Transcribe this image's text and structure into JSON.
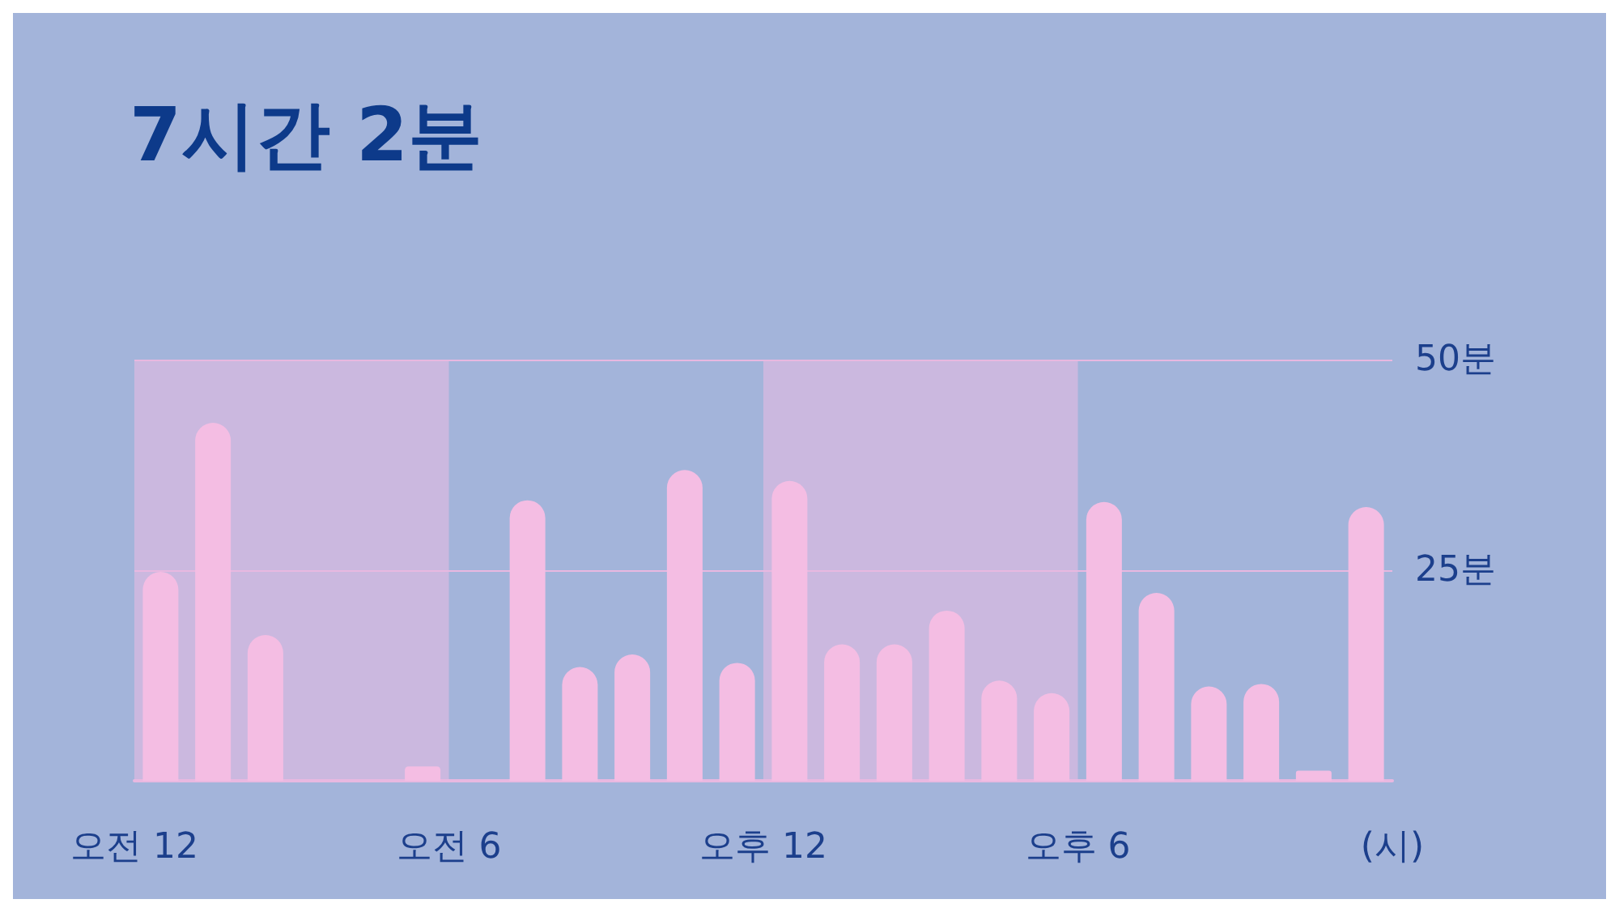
{
  "chart_data": {
    "type": "bar",
    "title": "7시간 2분",
    "xlabel": "(시)",
    "categories": [
      "오전 12",
      null,
      null,
      null,
      null,
      null,
      "오전 6",
      null,
      null,
      null,
      null,
      null,
      "오후 12",
      null,
      null,
      null,
      null,
      null,
      "오후 6",
      null,
      null,
      null,
      null,
      null
    ],
    "values": [
      24.8,
      42.5,
      17.3,
      0,
      0,
      1.7,
      0,
      33.3,
      13.5,
      15,
      36.9,
      14,
      35.6,
      16.2,
      16.2,
      20.2,
      11.9,
      10.4,
      33.1,
      22.3,
      11.2,
      11.5,
      1.2,
      32.5
    ],
    "color": "#f4bde3",
    "ylim": [
      0,
      50
    ],
    "yticks": [
      {
        "value": 0,
        "label": null
      },
      {
        "value": 25,
        "label": "25분"
      },
      {
        "value": 50,
        "label": "50분"
      }
    ],
    "bands": [
      {
        "axis": "x",
        "from": "오전 12",
        "to": "오전 6",
        "color": "#cbb8df"
      },
      {
        "axis": "x",
        "from": "오후 12",
        "to": "오후 6",
        "color": "#cbb8df"
      }
    ],
    "ref_lines": [
      {
        "axis": "y",
        "value": 25,
        "color": "#e8b8e0"
      },
      {
        "axis": "y",
        "value": 50,
        "color": "#e8b8e0"
      }
    ]
  }
}
